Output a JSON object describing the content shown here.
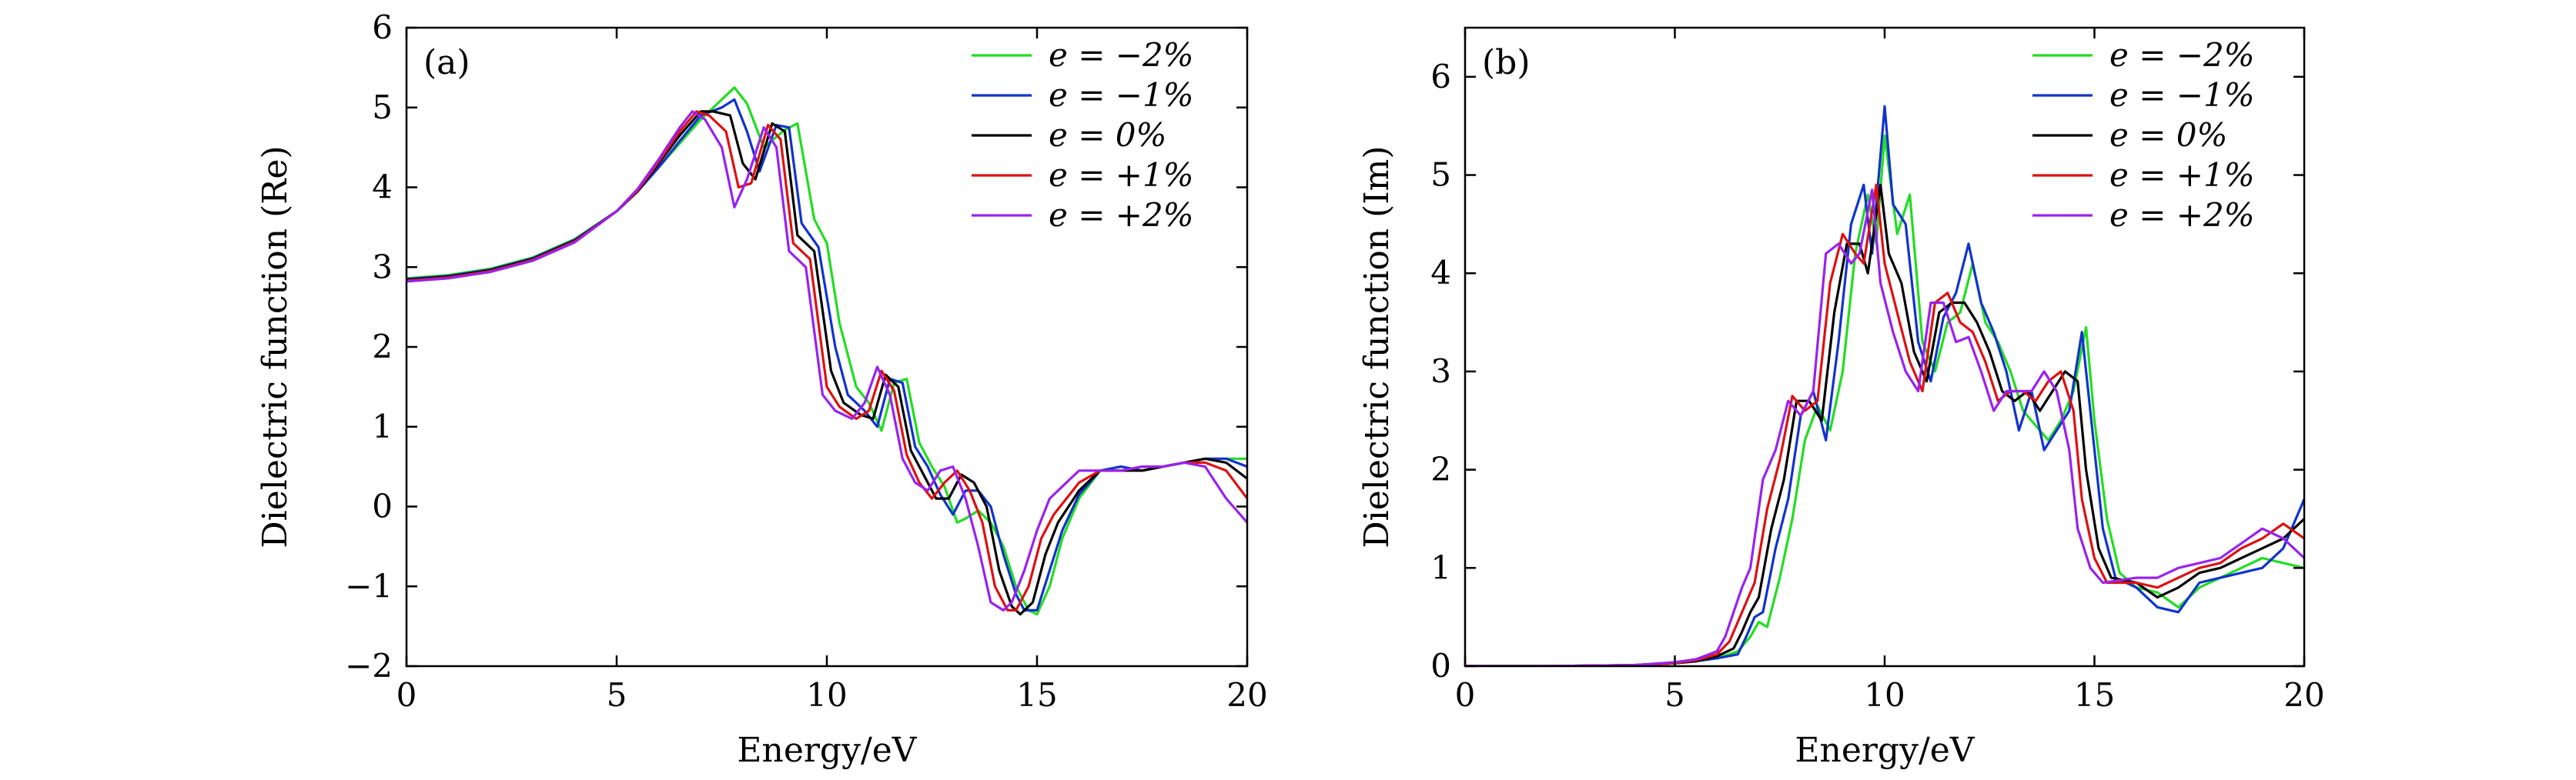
{
  "chart_data": [
    {
      "type": "line",
      "panel_label": "(a)",
      "xlabel": "Energy/eV",
      "ylabel": "Dielectric function (Re)",
      "xlim": [
        0,
        20
      ],
      "ylim": [
        -2,
        6
      ],
      "xticks": [
        0,
        5,
        10,
        15,
        20
      ],
      "xtick_labels": [
        "0",
        "5",
        "10",
        "15",
        "20"
      ],
      "yticks": [
        -2,
        -1,
        0,
        1,
        2,
        3,
        4,
        5,
        6
      ],
      "ytick_labels": [
        "−2",
        "−1",
        "0",
        "1",
        "2",
        "3",
        "4",
        "5",
        "6"
      ],
      "legend_position": "top-right",
      "series": [
        {
          "name": "e = −2%",
          "label": "e = −2%",
          "color": "#22dd22",
          "x": [
            0,
            1,
            2,
            3,
            4,
            5,
            5.5,
            6,
            6.5,
            7,
            7.5,
            7.8,
            8.1,
            8.5,
            9,
            9.3,
            9.7,
            10,
            10.3,
            10.7,
            11,
            11.3,
            11.6,
            11.9,
            12.2,
            12.5,
            12.8,
            13.1,
            13.3,
            13.6,
            13.9,
            14.2,
            14.5,
            14.8,
            15,
            15.3,
            15.6,
            16,
            16.5,
            17,
            17.5,
            18,
            18.5,
            19,
            19.5,
            20
          ],
          "y": [
            2.86,
            2.9,
            2.98,
            3.12,
            3.35,
            3.7,
            3.95,
            4.25,
            4.55,
            4.85,
            5.1,
            5.25,
            5.05,
            4.5,
            4.72,
            4.8,
            3.6,
            3.3,
            2.3,
            1.5,
            1.3,
            0.95,
            1.55,
            1.6,
            0.8,
            0.5,
            0.25,
            -0.2,
            -0.15,
            -0.05,
            -0.2,
            -0.5,
            -1.0,
            -1.3,
            -1.35,
            -1.0,
            -0.4,
            0.1,
            0.45,
            0.5,
            0.45,
            0.5,
            0.55,
            0.6,
            0.6,
            0.6
          ]
        },
        {
          "name": "e = −1%",
          "label": "e = −1%",
          "color": "#1133cc",
          "x": [
            0,
            1,
            2,
            3,
            4,
            5,
            5.5,
            6,
            6.5,
            7,
            7.5,
            7.8,
            8.1,
            8.4,
            8.8,
            9.1,
            9.4,
            9.8,
            10.2,
            10.5,
            10.9,
            11.2,
            11.5,
            11.8,
            12.1,
            12.4,
            12.7,
            13,
            13.3,
            13.6,
            13.9,
            14.2,
            14.5,
            14.7,
            15,
            15.3,
            15.6,
            16,
            16.5,
            17,
            17.5,
            18,
            18.5,
            19,
            19.5,
            20
          ],
          "y": [
            2.85,
            2.89,
            2.97,
            3.11,
            3.34,
            3.7,
            3.95,
            4.25,
            4.58,
            4.9,
            5.0,
            5.1,
            4.7,
            4.2,
            4.78,
            4.75,
            3.55,
            3.25,
            2.0,
            1.4,
            1.2,
            1.0,
            1.6,
            1.55,
            0.75,
            0.5,
            0.15,
            -0.1,
            0.2,
            0.2,
            0.0,
            -0.6,
            -1.1,
            -1.3,
            -1.3,
            -0.8,
            -0.3,
            0.15,
            0.45,
            0.5,
            0.45,
            0.5,
            0.55,
            0.6,
            0.6,
            0.5
          ]
        },
        {
          "name": "e = 0%",
          "label": "e = 0%",
          "color": "#000000",
          "x": [
            0,
            1,
            2,
            3,
            4,
            5,
            5.5,
            6,
            6.5,
            7,
            7.3,
            7.7,
            8,
            8.3,
            8.7,
            9,
            9.3,
            9.7,
            10.1,
            10.4,
            10.8,
            11.1,
            11.4,
            11.7,
            12,
            12.3,
            12.6,
            12.9,
            13.2,
            13.5,
            13.8,
            14.1,
            14.4,
            14.6,
            14.9,
            15.2,
            15.5,
            16,
            16.5,
            17,
            17.5,
            18,
            18.5,
            19,
            19.5,
            20
          ],
          "y": [
            2.84,
            2.88,
            2.96,
            3.1,
            3.33,
            3.7,
            3.95,
            4.3,
            4.65,
            4.95,
            4.95,
            4.9,
            4.3,
            4.1,
            4.8,
            4.7,
            3.4,
            3.2,
            1.7,
            1.3,
            1.15,
            1.1,
            1.65,
            1.5,
            0.7,
            0.4,
            0.1,
            0.1,
            0.4,
            0.3,
            0.0,
            -0.8,
            -1.25,
            -1.35,
            -1.2,
            -0.6,
            -0.2,
            0.2,
            0.45,
            0.45,
            0.45,
            0.5,
            0.55,
            0.6,
            0.55,
            0.35
          ]
        },
        {
          "name": "e = +1%",
          "label": "e = +1%",
          "color": "#dd1111",
          "x": [
            0,
            1,
            2,
            3,
            4,
            5,
            5.5,
            6,
            6.5,
            6.9,
            7.2,
            7.6,
            7.9,
            8.2,
            8.6,
            8.9,
            9.2,
            9.6,
            10,
            10.3,
            10.7,
            11,
            11.3,
            11.6,
            11.9,
            12.2,
            12.5,
            12.8,
            13.1,
            13.4,
            13.7,
            14,
            14.3,
            14.5,
            14.8,
            15.1,
            15.4,
            16,
            16.5,
            17,
            17.5,
            18,
            18.5,
            19,
            19.5,
            20
          ],
          "y": [
            2.83,
            2.87,
            2.95,
            3.09,
            3.32,
            3.7,
            3.96,
            4.32,
            4.7,
            4.95,
            4.9,
            4.7,
            4.0,
            4.05,
            4.78,
            4.6,
            3.3,
            3.1,
            1.5,
            1.25,
            1.1,
            1.2,
            1.7,
            1.45,
            0.65,
            0.3,
            0.1,
            0.3,
            0.45,
            0.2,
            -0.2,
            -1.0,
            -1.3,
            -1.3,
            -1.0,
            -0.4,
            -0.1,
            0.3,
            0.45,
            0.45,
            0.5,
            0.5,
            0.55,
            0.55,
            0.45,
            0.1
          ]
        },
        {
          "name": "e = +2%",
          "label": "e = +2%",
          "color": "#9922ee",
          "x": [
            0,
            1,
            2,
            3,
            4,
            5,
            5.5,
            6,
            6.5,
            6.8,
            7.1,
            7.5,
            7.8,
            8.1,
            8.5,
            8.8,
            9.1,
            9.5,
            9.9,
            10.2,
            10.6,
            10.9,
            11.2,
            11.5,
            11.8,
            12.1,
            12.4,
            12.7,
            13,
            13.3,
            13.6,
            13.9,
            14.2,
            14.4,
            14.7,
            15,
            15.3,
            16,
            16.5,
            17,
            17.5,
            18,
            18.5,
            19,
            19.5,
            20
          ],
          "y": [
            2.82,
            2.86,
            2.94,
            3.08,
            3.31,
            3.7,
            3.98,
            4.35,
            4.75,
            4.95,
            4.85,
            4.5,
            3.75,
            4.1,
            4.75,
            4.5,
            3.2,
            3.0,
            1.4,
            1.2,
            1.1,
            1.3,
            1.75,
            1.4,
            0.6,
            0.3,
            0.2,
            0.45,
            0.5,
            0.1,
            -0.5,
            -1.2,
            -1.3,
            -1.2,
            -0.8,
            -0.3,
            0.1,
            0.45,
            0.45,
            0.45,
            0.5,
            0.5,
            0.55,
            0.5,
            0.1,
            -0.2
          ]
        }
      ]
    },
    {
      "type": "line",
      "panel_label": "(b)",
      "xlabel": "Energy/eV",
      "ylabel": "Dielectric function (Im)",
      "xlim": [
        0,
        20
      ],
      "ylim": [
        0,
        6.5
      ],
      "xticks": [
        0,
        5,
        10,
        15,
        20
      ],
      "xtick_labels": [
        "0",
        "5",
        "10",
        "15",
        "20"
      ],
      "yticks": [
        0,
        1,
        2,
        3,
        4,
        5,
        6
      ],
      "ytick_labels": [
        "0",
        "1",
        "2",
        "3",
        "4",
        "5",
        "6"
      ],
      "legend_position": "top-right",
      "series": [
        {
          "name": "e = −2%",
          "label": "e = −2%",
          "color": "#22dd22",
          "x": [
            0,
            2,
            4,
            5,
            5.5,
            6,
            6.5,
            6.8,
            7,
            7.2,
            7.5,
            7.8,
            8.1,
            8.4,
            8.7,
            9,
            9.3,
            9.6,
            9.8,
            10,
            10.3,
            10.6,
            10.9,
            11.2,
            11.5,
            11.8,
            12.1,
            12.4,
            12.7,
            13,
            13.3,
            13.6,
            13.9,
            14.2,
            14.5,
            14.8,
            15,
            15.3,
            15.6,
            16,
            16.5,
            17,
            17.5,
            18,
            18.5,
            19,
            19.5,
            20
          ],
          "y": [
            0,
            0,
            0.01,
            0.03,
            0.05,
            0.08,
            0.15,
            0.3,
            0.45,
            0.4,
            0.9,
            1.5,
            2.3,
            2.65,
            2.4,
            3.0,
            4.2,
            4.8,
            4.3,
            5.4,
            4.4,
            4.8,
            3.3,
            3.0,
            3.5,
            3.6,
            4.1,
            3.5,
            3.3,
            3.0,
            2.6,
            2.45,
            2.3,
            2.5,
            2.8,
            3.45,
            2.5,
            1.5,
            0.95,
            0.8,
            0.75,
            0.6,
            0.8,
            0.9,
            1.0,
            1.1,
            1.05,
            1.0
          ]
        },
        {
          "name": "e = −1%",
          "label": "e = −1%",
          "color": "#1133cc",
          "x": [
            0,
            2,
            4,
            5,
            5.5,
            6,
            6.5,
            6.7,
            6.9,
            7.1,
            7.4,
            7.7,
            8,
            8.3,
            8.6,
            8.9,
            9.2,
            9.5,
            9.7,
            10,
            10.2,
            10.5,
            10.8,
            11.1,
            11.4,
            11.7,
            12,
            12.3,
            12.6,
            12.9,
            13.2,
            13.5,
            13.8,
            14.1,
            14.4,
            14.7,
            14.9,
            15.2,
            15.5,
            16,
            16.5,
            17,
            17.5,
            18,
            18.5,
            19,
            19.5,
            20
          ],
          "y": [
            0,
            0,
            0.01,
            0.03,
            0.05,
            0.08,
            0.12,
            0.3,
            0.5,
            0.55,
            1.2,
            1.7,
            2.55,
            2.8,
            2.3,
            3.3,
            4.5,
            4.9,
            4.2,
            5.7,
            4.7,
            4.5,
            3.3,
            2.9,
            3.55,
            3.8,
            4.3,
            3.7,
            3.4,
            3.0,
            2.4,
            2.8,
            2.2,
            2.4,
            2.6,
            3.4,
            2.6,
            1.4,
            0.9,
            0.8,
            0.6,
            0.55,
            0.85,
            0.9,
            0.95,
            1.0,
            1.2,
            1.7
          ]
        },
        {
          "name": "e = 0%",
          "label": "e = 0%",
          "color": "#000000",
          "x": [
            0,
            2,
            4,
            5,
            5.5,
            6,
            6.4,
            6.6,
            6.8,
            7,
            7.3,
            7.6,
            7.9,
            8.2,
            8.5,
            8.8,
            9.1,
            9.4,
            9.6,
            9.9,
            10.1,
            10.4,
            10.7,
            11,
            11.3,
            11.6,
            11.9,
            12.2,
            12.5,
            12.8,
            13.1,
            13.4,
            13.7,
            14,
            14.3,
            14.6,
            14.8,
            15.1,
            15.4,
            16,
            16.5,
            17,
            17.5,
            18,
            18.5,
            19,
            19.5,
            20
          ],
          "y": [
            0,
            0,
            0.01,
            0.03,
            0.05,
            0.1,
            0.18,
            0.35,
            0.55,
            0.7,
            1.4,
            1.9,
            2.7,
            2.7,
            2.5,
            3.6,
            4.3,
            4.3,
            4.0,
            4.9,
            4.2,
            3.9,
            3.2,
            2.9,
            3.6,
            3.7,
            3.7,
            3.5,
            3.2,
            2.8,
            2.7,
            2.8,
            2.6,
            2.8,
            3.0,
            2.9,
            2.0,
            1.2,
            0.9,
            0.85,
            0.7,
            0.8,
            0.95,
            1.0,
            1.1,
            1.2,
            1.3,
            1.5
          ]
        },
        {
          "name": "e = +1%",
          "label": "e = +1%",
          "color": "#dd1111",
          "x": [
            0,
            2,
            4,
            5,
            5.5,
            6,
            6.3,
            6.5,
            6.7,
            6.9,
            7.2,
            7.5,
            7.8,
            8.1,
            8.4,
            8.7,
            9,
            9.3,
            9.5,
            9.8,
            10,
            10.3,
            10.6,
            10.9,
            11.2,
            11.5,
            11.8,
            12.1,
            12.4,
            12.7,
            13,
            13.3,
            13.6,
            13.9,
            14.2,
            14.5,
            14.7,
            15,
            15.3,
            16,
            16.5,
            17,
            17.5,
            18,
            18.5,
            19,
            19.5,
            20
          ],
          "y": [
            0,
            0,
            0.01,
            0.03,
            0.06,
            0.12,
            0.25,
            0.45,
            0.65,
            0.85,
            1.6,
            2.1,
            2.75,
            2.6,
            2.7,
            3.9,
            4.4,
            4.2,
            4.1,
            4.9,
            4.1,
            3.6,
            3.1,
            2.8,
            3.7,
            3.8,
            3.5,
            3.4,
            3.1,
            2.7,
            2.8,
            2.8,
            2.7,
            2.9,
            3.0,
            2.6,
            1.7,
            1.1,
            0.85,
            0.85,
            0.8,
            0.9,
            1.0,
            1.05,
            1.2,
            1.3,
            1.45,
            1.3
          ]
        },
        {
          "name": "e = +2%",
          "label": "e = +2%",
          "color": "#9922ee",
          "x": [
            0,
            2,
            4,
            5,
            5.5,
            6,
            6.2,
            6.4,
            6.6,
            6.8,
            7.1,
            7.4,
            7.7,
            8,
            8.3,
            8.6,
            8.9,
            9.2,
            9.4,
            9.7,
            9.9,
            10.2,
            10.5,
            10.8,
            11.1,
            11.4,
            11.7,
            12,
            12.3,
            12.6,
            12.9,
            13.2,
            13.5,
            13.8,
            14.1,
            14.4,
            14.6,
            14.9,
            15.2,
            16,
            16.5,
            17,
            17.5,
            18,
            18.5,
            19,
            19.5,
            20
          ],
          "y": [
            0,
            0,
            0.01,
            0.04,
            0.07,
            0.15,
            0.3,
            0.55,
            0.8,
            1.0,
            1.9,
            2.2,
            2.7,
            2.55,
            2.8,
            4.2,
            4.3,
            4.1,
            4.2,
            4.85,
            3.9,
            3.4,
            3.0,
            2.8,
            3.7,
            3.7,
            3.3,
            3.35,
            3.0,
            2.6,
            2.8,
            2.8,
            2.8,
            3.0,
            2.8,
            2.2,
            1.4,
            1.0,
            0.85,
            0.9,
            0.9,
            1.0,
            1.05,
            1.1,
            1.25,
            1.4,
            1.3,
            1.1
          ]
        }
      ]
    }
  ]
}
